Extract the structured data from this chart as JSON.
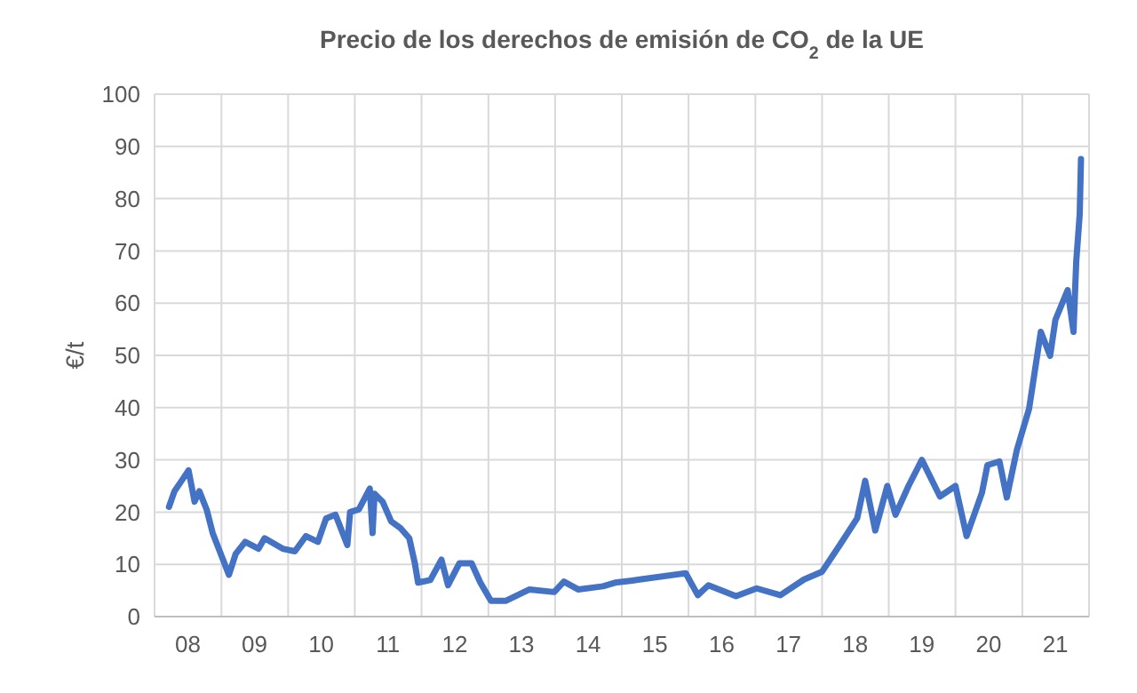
{
  "chart_data": {
    "type": "line",
    "title": "Precio de los derechos de emisión de CO$_{2}$ de la UE",
    "ylabel": "€/t",
    "x": [
      "2008-03-20",
      "2008-04-19",
      "2008-05-28",
      "2008-07-05",
      "2008-08-07",
      "2008-09-02",
      "2008-10-12",
      "2008-11-14",
      "2008-12-17",
      "2009-02-11",
      "2009-03-20",
      "2009-05-11",
      "2009-07-23",
      "2009-08-25",
      "2009-12-02",
      "2010-02-07",
      "2010-04-08",
      "2010-06-13",
      "2010-07-28",
      "2010-09-17",
      "2010-11-21",
      "2010-12-06",
      "2011-01-23",
      "2011-03-24",
      "2011-04-08",
      "2011-04-19",
      "2011-06-02",
      "2011-07-19",
      "2011-09-06",
      "2011-10-26",
      "2011-11-25",
      "2011-12-13",
      "2012-02-18",
      "2012-04-19",
      "2012-05-25",
      "2012-07-26",
      "2012-10-01",
      "2012-11-18",
      "2013-01-15",
      "2013-04-05",
      "2013-08-14",
      "2013-12-27",
      "2014-02-18",
      "2014-05-07",
      "2014-09-20",
      "2014-11-25",
      "2015-02-27",
      "2015-04-08",
      "2015-12-17",
      "2016-02-21",
      "2016-04-19",
      "2016-09-17",
      "2017-01-08",
      "2017-05-18",
      "2017-09-24",
      "2018-01-01",
      "2018-04-08",
      "2018-07-12",
      "2018-08-25",
      "2018-10-19",
      "2018-12-24",
      "2019-02-07",
      "2019-04-19",
      "2019-07-01",
      "2019-10-08",
      "2020-01-01",
      "2020-03-02",
      "2020-05-25",
      "2020-06-24",
      "2020-08-29",
      "2020-10-08",
      "2020-12-02",
      "2021-02-07",
      "2021-04-12",
      "2021-06-02",
      "2021-07-01",
      "2021-09-06",
      "2021-10-08",
      "2021-10-23",
      "2021-11-11",
      "2021-11-18"
    ],
    "series": [
      {
        "color": "#4472c4",
        "values": [
          21,
          24,
          26,
          28,
          22,
          24,
          20.5,
          16,
          13,
          8,
          12,
          14.3,
          13,
          15,
          13,
          12.5,
          15.4,
          14.3,
          18.8,
          19.5,
          13.7,
          20,
          20.5,
          24.5,
          16,
          23.5,
          22,
          18.2,
          17,
          15,
          10.3,
          6.5,
          7,
          10.9,
          6,
          10.2,
          10.2,
          6.5,
          3,
          3,
          5.2,
          4.7,
          6.7,
          5.2,
          5.8,
          6.5,
          6.9,
          7.1,
          8.3,
          4.1,
          6,
          3.9,
          5.4,
          4.1,
          7.1,
          8.6,
          13.7,
          18.8,
          26,
          16.5,
          25,
          19.5,
          25,
          30,
          23,
          25,
          15.4,
          23.7,
          29,
          29.7,
          22.8,
          31.9,
          39.8,
          54.5,
          49.9,
          56.8,
          62.5,
          54.5,
          68,
          77,
          87.6
        ]
      }
    ],
    "xlim": [
      "2008-01-01",
      "2022-01-01"
    ],
    "xticks": [
      {
        "value": "2008-01-01",
        "label": null
      },
      {
        "value": "2008-07-01",
        "label": "08"
      },
      {
        "value": "2009-01-01",
        "label": null
      },
      {
        "value": "2009-07-01",
        "label": "09"
      },
      {
        "value": "2010-01-01",
        "label": null
      },
      {
        "value": "2010-07-01",
        "label": "10"
      },
      {
        "value": "2011-01-01",
        "label": null
      },
      {
        "value": "2011-07-01",
        "label": "11"
      },
      {
        "value": "2012-01-01",
        "label": null
      },
      {
        "value": "2012-07-01",
        "label": "12"
      },
      {
        "value": "2013-01-01",
        "label": null
      },
      {
        "value": "2013-07-01",
        "label": "13"
      },
      {
        "value": "2014-01-01",
        "label": null
      },
      {
        "value": "2014-07-01",
        "label": "14"
      },
      {
        "value": "2015-01-01",
        "label": null
      },
      {
        "value": "2015-07-01",
        "label": "15"
      },
      {
        "value": "2016-01-01",
        "label": null
      },
      {
        "value": "2016-07-01",
        "label": "16"
      },
      {
        "value": "2017-01-01",
        "label": null
      },
      {
        "value": "2017-07-01",
        "label": "17"
      },
      {
        "value": "2018-01-01",
        "label": null
      },
      {
        "value": "2018-07-01",
        "label": "18"
      },
      {
        "value": "2019-01-01",
        "label": null
      },
      {
        "value": "2019-07-01",
        "label": "19"
      },
      {
        "value": "2020-01-01",
        "label": null
      },
      {
        "value": "2020-07-01",
        "label": "20"
      },
      {
        "value": "2021-01-01",
        "label": null
      },
      {
        "value": "2021-07-01",
        "label": "21"
      },
      {
        "value": "2022-01-01",
        "label": null
      }
    ],
    "ylim": [
      0,
      100
    ],
    "yticks": [
      0,
      10,
      20,
      30,
      40,
      50,
      60,
      70,
      80,
      90,
      100
    ],
    "grid": true,
    "marker": "none",
    "line_style": "solid"
  }
}
